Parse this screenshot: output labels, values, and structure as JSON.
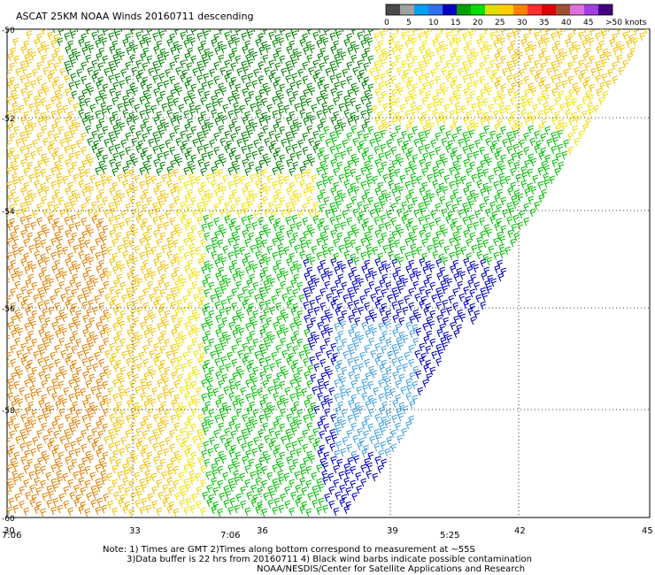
{
  "title": "ASCAT 25KM NOAA Winds 20160711 descending",
  "legend": {
    "colors": [
      "#4a4a4a",
      "#a0a0a0",
      "#00a0f0",
      "#3070f0",
      "#0000c0",
      "#00a000",
      "#00e000",
      "#e0e000",
      "#ffd000",
      "#ff8000",
      "#ff3030",
      "#e00000",
      "#a05030",
      "#e070e0",
      "#a040e0",
      "#400080"
    ],
    "labels": [
      "0",
      "5",
      "10",
      "15",
      "20",
      "25",
      "30",
      "35",
      "40",
      "45",
      ">50 knots"
    ]
  },
  "lat_ticks": [
    "-50",
    "-52",
    "-54",
    "-56",
    "-58",
    "-60"
  ],
  "lon_ticks": [
    "30",
    "33",
    "36",
    "39",
    "42",
    "45"
  ],
  "time_labels": [
    "7:06",
    "7:06",
    "5:25"
  ],
  "time_color": "#800080",
  "note_lines": [
    "Note: 1) Times are GMT 2)Times along bottom correspond to measurement at ~55S",
    "3)Data buffer is 22 hrs from 20160711 4) Black wind barbs indicate possible contamination",
    "NOAA/NESDIS/Center for Satellite Applications and Research"
  ],
  "barb_colors": {
    "yellow": "#f0e000",
    "gold": "#f0c000",
    "orange": "#e08000",
    "green": "#00c000",
    "darkgreen": "#008000",
    "blue": "#0000c0",
    "lightblue": "#40a0e0"
  }
}
